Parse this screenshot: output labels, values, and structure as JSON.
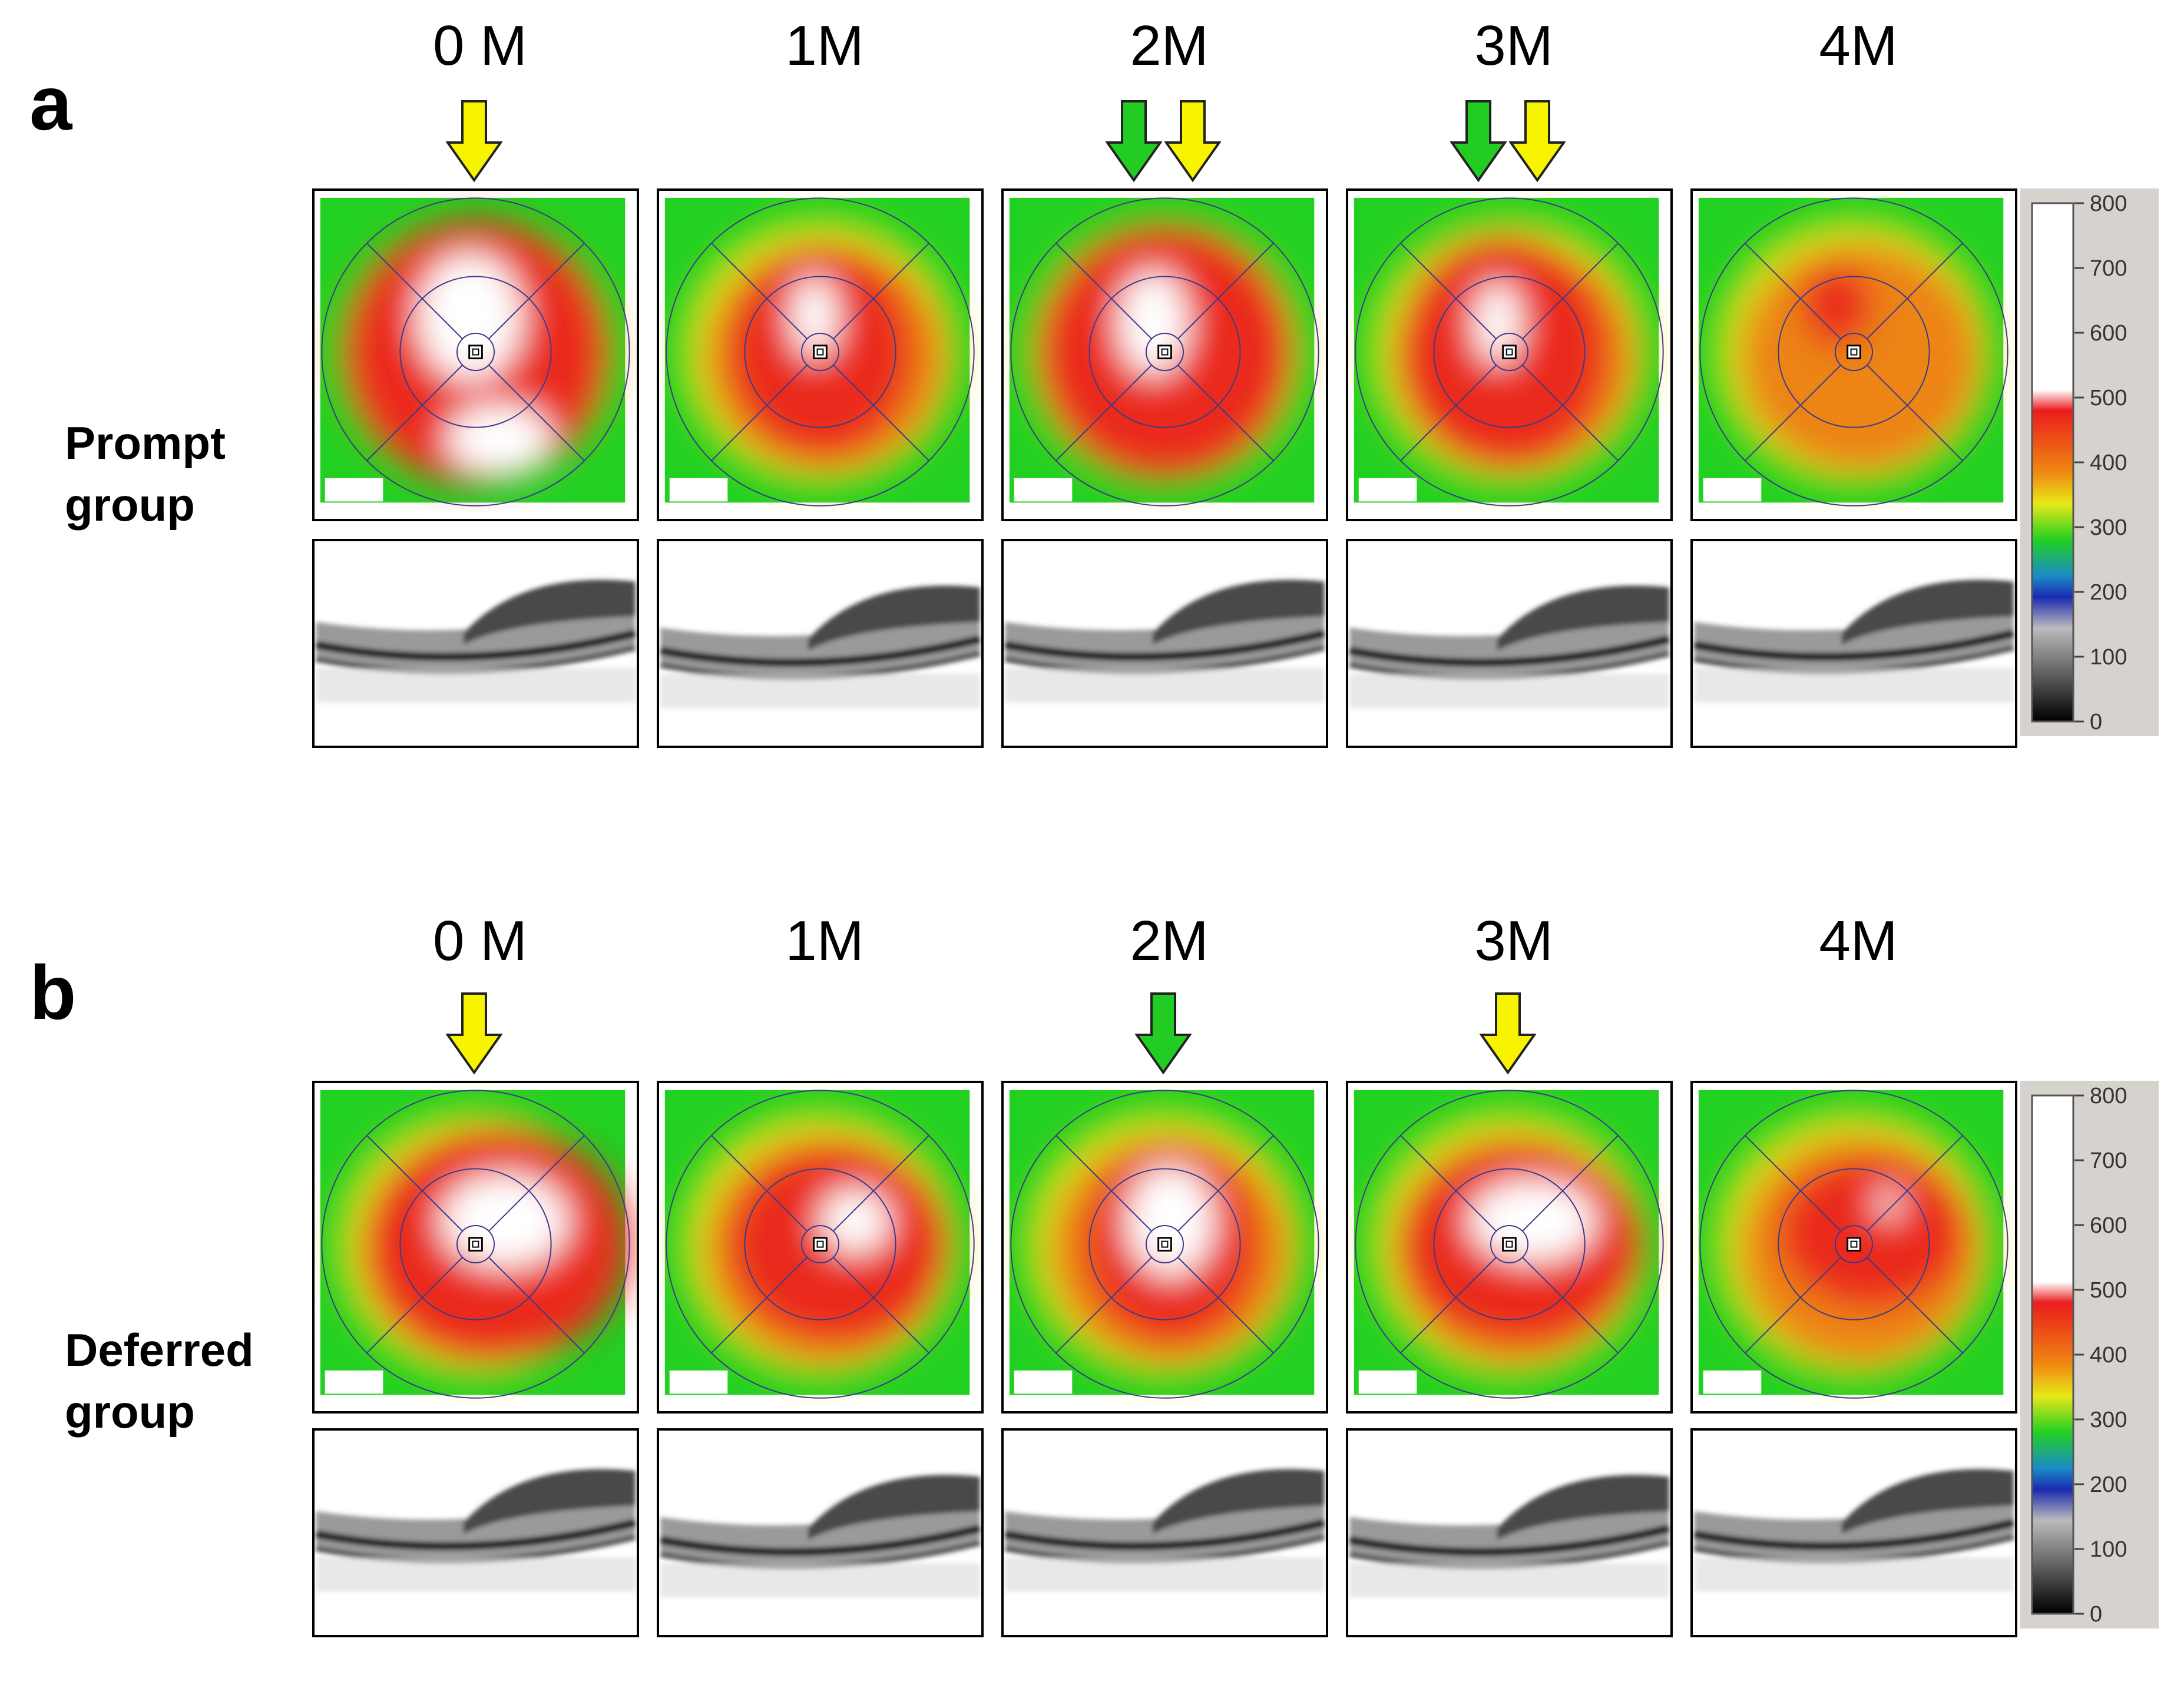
{
  "panels": [
    {
      "letter": "a",
      "group": "Prompt\ngroup",
      "months": [
        "0 M",
        "1M",
        "2M",
        "3M",
        "4M"
      ],
      "arrows": [
        {
          "month": 0,
          "colors": [
            "yellow"
          ]
        },
        {
          "month": 2,
          "colors": [
            "green",
            "yellow"
          ]
        },
        {
          "month": 3,
          "colors": [
            "green",
            "yellow"
          ]
        }
      ]
    },
    {
      "letter": "b",
      "group": "Deferred\ngroup",
      "months": [
        "0 M",
        "1M",
        "2M",
        "3M",
        "4M"
      ],
      "arrows": [
        {
          "month": 0,
          "colors": [
            "yellow"
          ]
        },
        {
          "month": 2,
          "colors": [
            "green"
          ]
        },
        {
          "month": 3,
          "colors": [
            "yellow"
          ]
        }
      ]
    }
  ],
  "scale_labels": [
    "800",
    "700",
    "600",
    "500",
    "400",
    "300",
    "200",
    "100",
    "0"
  ],
  "colors": {
    "yellow_arrow": "#f8f400",
    "green_arrow": "#22cc22",
    "map_green": "#22d022",
    "map_yellow": "#f2e21a",
    "map_orange": "#f07a12",
    "map_red": "#ea1c1c",
    "map_white": "#ffffff"
  }
}
